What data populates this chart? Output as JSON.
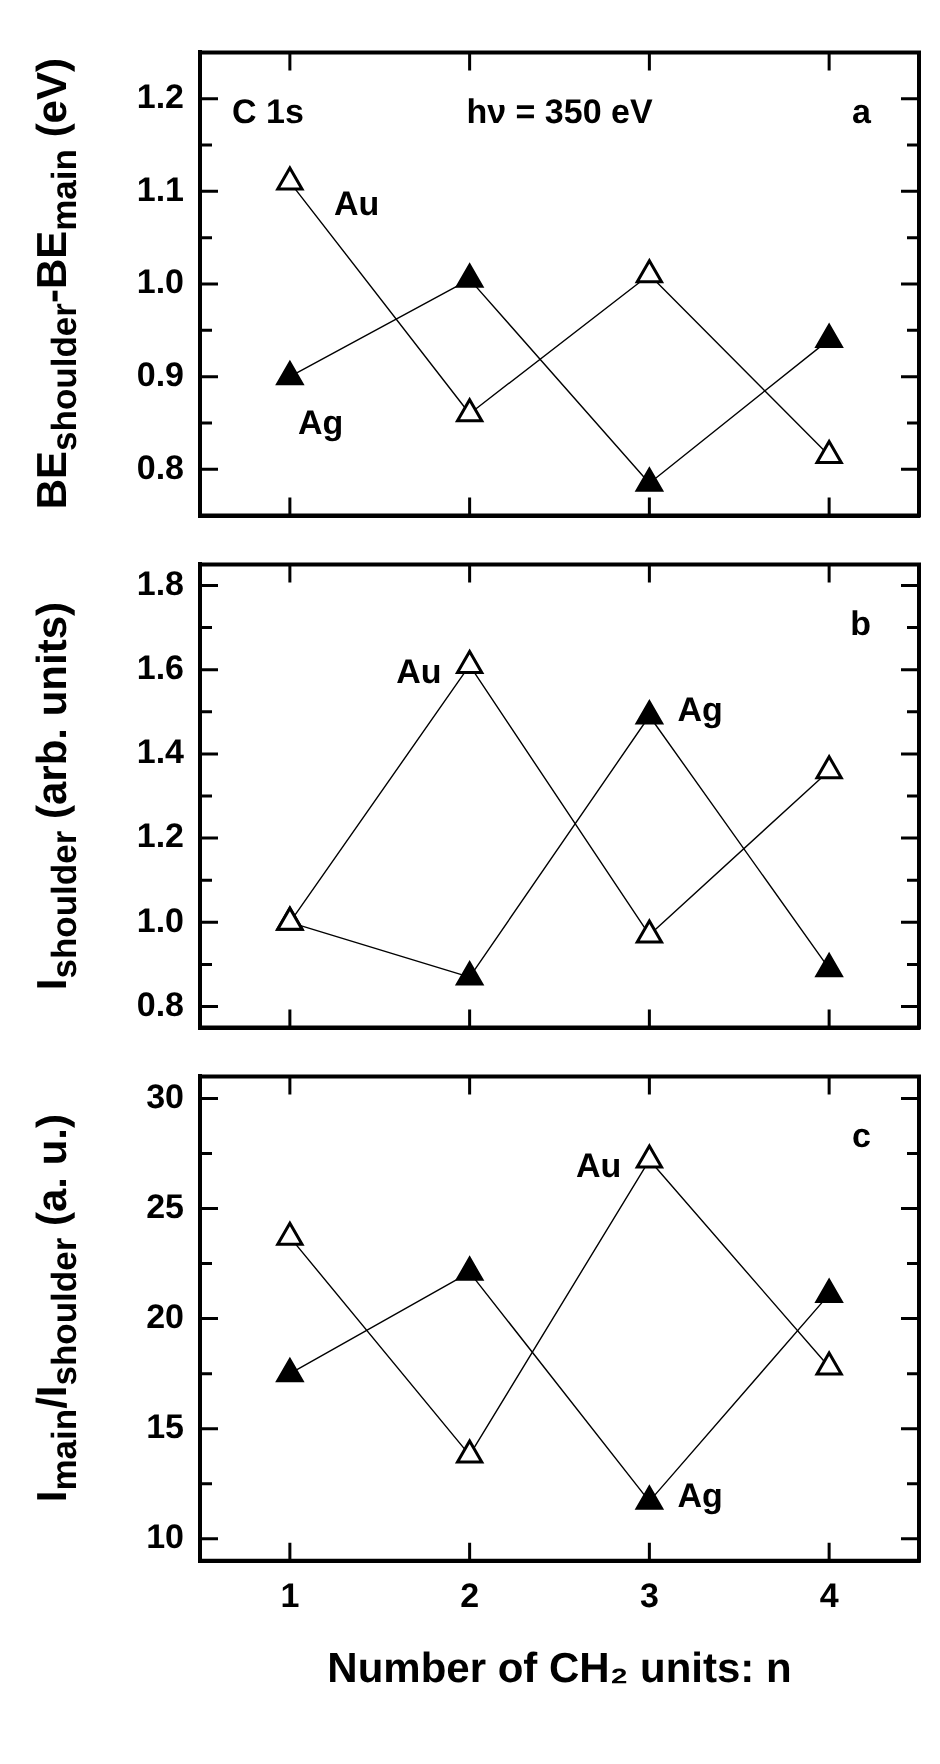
{
  "chart_data": [
    {
      "type": "line",
      "ylabel": "BE$_{shoulder}$-BE$_{main}$ (eV)",
      "x": [
        1,
        2,
        3,
        4
      ],
      "xlim": [
        0.5,
        4.5
      ],
      "xticks": [
        1,
        2,
        3,
        4
      ],
      "ylim": [
        0.75,
        1.25
      ],
      "yticks": [
        {
          "value": 0.8,
          "label": "0.8"
        },
        {
          "value": 0.85,
          "label": null
        },
        {
          "value": 0.9,
          "label": "0.9"
        },
        {
          "value": 0.95,
          "label": null
        },
        {
          "value": 1,
          "label": "1.0"
        },
        {
          "value": 1.05,
          "label": null
        },
        {
          "value": 1.1,
          "label": "1.1"
        },
        {
          "value": 1.15,
          "label": null
        },
        {
          "value": 1.2,
          "label": "1.2"
        }
      ],
      "tick_labels": "y",
      "grid": false,
      "legend": false,
      "marker": "triangle",
      "line_style": "solid",
      "series": [
        {
          "color": "#000000",
          "values": [
            1.11,
            0.86,
            1.01,
            0.815
          ]
        },
        {
          "color": "#000000",
          "values": [
            0.9,
            1.005,
            0.785,
            0.94
          ]
        }
      ],
      "annotations": [
        "C 1s",
        "hν = 350 eV",
        "a",
        {
          "text": "Au",
          "x": 1,
          "y": 1.11
        },
        {
          "text": "Ag",
          "x": 1,
          "y": 0.9
        }
      ]
    },
    {
      "type": "line",
      "ylabel": "I$_{shoulder}$ (arb. units)",
      "x": [
        1,
        2,
        3,
        4
      ],
      "xlim": [
        0.5,
        4.5
      ],
      "xticks": [
        1,
        2,
        3,
        4
      ],
      "ylim": [
        0.75,
        1.85
      ],
      "yticks": [
        {
          "value": 0.8,
          "label": "0.8"
        },
        {
          "value": 0.9,
          "label": null
        },
        {
          "value": 1,
          "label": "1.0"
        },
        {
          "value": 1.1,
          "label": null
        },
        {
          "value": 1.2,
          "label": "1.2"
        },
        {
          "value": 1.3,
          "label": null
        },
        {
          "value": 1.4,
          "label": "1.4"
        },
        {
          "value": 1.5,
          "label": null
        },
        {
          "value": 1.6,
          "label": "1.6"
        },
        {
          "value": 1.7,
          "label": null
        },
        {
          "value": 1.8,
          "label": "1.8"
        }
      ],
      "tick_labels": "y",
      "grid": false,
      "legend": false,
      "marker": "triangle",
      "line_style": "solid",
      "series": [
        {
          "color": "#000000",
          "values": [
            1.0,
            1.61,
            0.97,
            1.36
          ]
        },
        {
          "color": "#000000",
          "values": [
            1.0,
            0.87,
            1.49,
            0.89
          ]
        }
      ],
      "annotations": [
        "b",
        {
          "text": "Au",
          "x": 2,
          "y": 1.61
        },
        {
          "text": "Ag",
          "x": 3,
          "y": 1.49
        }
      ]
    },
    {
      "type": "line",
      "ylabel": "I$_{main}$/I$_{shoulder}$ (a. u.)",
      "xlabel": "Number of CH₂ units: n",
      "x": [
        1,
        2,
        3,
        4
      ],
      "xlim": [
        0.5,
        4.5
      ],
      "xticks": [
        1,
        2,
        3,
        4
      ],
      "ylim": [
        9,
        31
      ],
      "yticks": [
        10,
        {
          "value": 12.5,
          "label": null
        },
        15,
        {
          "value": 17.5,
          "label": null
        },
        20,
        {
          "value": 22.5,
          "label": null
        },
        25,
        {
          "value": 27.5,
          "label": null
        },
        30
      ],
      "grid": false,
      "legend": false,
      "marker": "triangle",
      "line_style": "solid",
      "series": [
        {
          "color": "#000000",
          "values": [
            23.7,
            13.8,
            27.2,
            17.8
          ]
        },
        {
          "color": "#000000",
          "values": [
            17.5,
            22.1,
            11.7,
            21.1
          ]
        }
      ],
      "annotations": [
        "c",
        {
          "text": "Au",
          "x": 3,
          "y": 27.2
        },
        {
          "text": "Ag",
          "x": 3,
          "y": 11.7
        }
      ]
    }
  ]
}
